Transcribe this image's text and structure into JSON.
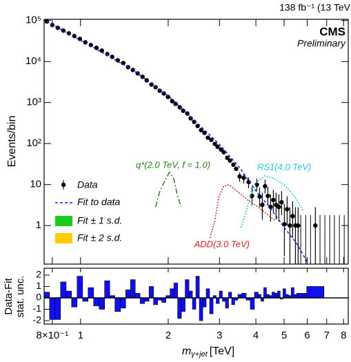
{
  "header": {
    "lumi": "138 fb⁻¹ (13 TeV",
    "experiment": "CMS",
    "status": "Preliminary"
  },
  "chart_data": [
    {
      "type": "line",
      "xlog": true,
      "ylog": true,
      "y_label": "Events/bin",
      "xlim": [
        0.75,
        8.3
      ],
      "ylim": [
        0.115,
        107000
      ],
      "xticks": [
        {
          "value": 0.8,
          "label": "8×10⁻¹"
        },
        1,
        2,
        3,
        4,
        5,
        6,
        7,
        8
      ],
      "yticks": [
        1,
        10,
        {
          "value": 100,
          "label": "10²"
        },
        {
          "value": 1000,
          "label": "10³"
        },
        {
          "value": 10000,
          "label": "10⁴"
        },
        {
          "value": 100000,
          "label": "10⁵"
        }
      ],
      "legend_extra": [
        {
          "name": "Fit ± 1 s.d.",
          "color": "#1ccc1c"
        },
        {
          "name": "Fit ± 2 s.d.",
          "color": "#ffcc00"
        }
      ],
      "series": [
        {
          "name": "Data",
          "style": "points",
          "color": "#000000",
          "x": [
            0.766,
            0.8,
            0.835,
            0.873,
            0.912,
            0.952,
            0.995,
            1.039,
            1.085,
            1.134,
            1.184,
            1.236,
            1.284,
            1.342,
            1.402,
            1.456,
            1.512,
            1.571,
            1.633,
            1.687,
            1.752,
            1.81,
            1.87,
            1.932,
            1.996,
            2.063,
            2.12,
            2.19,
            2.25,
            2.325,
            2.389,
            2.455,
            2.523,
            2.593,
            2.664,
            2.737,
            2.813,
            2.891,
            2.954,
            3.036,
            3.102,
            3.188,
            3.258,
            3.348,
            3.422,
            3.517,
            3.634,
            3.775,
            3.879,
            4.03,
            4.119,
            4.209,
            4.301,
            4.396,
            4.492,
            4.591,
            4.692,
            4.796,
            4.901,
            5.009,
            5.119,
            5.233,
            5.348,
            5.467,
            5.585,
            6.4
          ],
          "values": [
            94400,
            77600,
            66500,
            56900,
            48800,
            41800,
            35700,
            29400,
            25200,
            21600,
            18500,
            15200,
            13000,
            10700,
            9180,
            7280,
            6230,
            5130,
            4230,
            3480,
            2750,
            2360,
            1940,
            1660,
            1370,
            1080,
            929,
            765,
            630,
            540,
            411,
            339,
            268,
            212,
            182,
            139,
            123,
            97.7,
            83.6,
            71.6,
            61.4,
            45.0,
            38.5,
            30.5,
            24.2,
            15.7,
            14.6,
            11.5,
            5.3,
            9.9,
            5.1,
            3.2,
            9.1,
            5.3,
            2.85,
            4.2,
            3.2,
            2.85,
            3.7,
            1.08,
            2.5,
            1,
            1.7,
            1,
            1,
            1
          ],
          "error_low": [
            null,
            null,
            null,
            null,
            null,
            null,
            null,
            null,
            null,
            null,
            null,
            null,
            null,
            null,
            null,
            null,
            null,
            null,
            null,
            null,
            null,
            null,
            null,
            null,
            null,
            null,
            null,
            null,
            null,
            null,
            null,
            null,
            null,
            null,
            null,
            null,
            null,
            null,
            null,
            null,
            null,
            null,
            null,
            null,
            null,
            4,
            4,
            3.4,
            2.2,
            3,
            2.2,
            1.8,
            3,
            2.2,
            1.6,
            2,
            1.8,
            1.6,
            1.9,
            0.9,
            1.5,
            1,
            1.2,
            1,
            1,
            1
          ],
          "error_high": [
            null,
            null,
            null,
            null,
            null,
            null,
            null,
            null,
            null,
            null,
            null,
            null,
            null,
            null,
            null,
            null,
            null,
            null,
            null,
            null,
            null,
            null,
            null,
            null,
            null,
            null,
            null,
            null,
            null,
            null,
            null,
            null,
            null,
            null,
            null,
            null,
            null,
            null,
            null,
            null,
            null,
            null,
            null,
            null,
            null,
            4,
            4,
            3.4,
            3.4,
            4,
            3.4,
            3.1,
            4,
            3.4,
            2.9,
            3.2,
            3.1,
            2.9,
            3.2,
            2.3,
            2.7,
            1.8,
            2.2,
            1.8,
            1.8,
            1.8
          ]
        },
        {
          "name": "Fit to data",
          "style": "dashed",
          "color": "#1a1aee",
          "x": [
            0.766,
            0.8,
            1,
            1.5,
            2,
            2.5,
            3,
            3.5,
            4,
            4.5,
            5,
            5.5,
            6
          ],
          "values": [
            94400,
            80000,
            33000,
            6500,
            1450,
            330,
            95,
            27,
            7,
            2.6,
            0.9,
            0.38,
            0.13
          ]
        },
        {
          "name": "q*(2.0 TeV, f = 1.0)",
          "style": "dashdot",
          "color": "#2a7f1e",
          "x": [
            1.81,
            1.87,
            1.932,
            2.018,
            2.085,
            2.143,
            2.214
          ],
          "values": [
            2.85,
            6.7,
            11.1,
            19.9,
            14.6,
            6.2,
            2.85
          ]
        },
        {
          "name": "ADD(3.0 TeV)",
          "style": "dotted",
          "color": "#d42020",
          "x": [
            2.782,
            2.891,
            2.986,
            3.102,
            3.242,
            3.46,
            3.752,
            4.07,
            4.42,
            4.67
          ],
          "values": [
            0.5,
            1.31,
            5.1,
            9.15,
            9.9,
            6.7,
            4.2,
            2.85,
            1.79,
            1.31
          ]
        },
        {
          "name": "RS1(4.0 TeV)",
          "style": "dotted",
          "color": "#22c4d8",
          "x": [
            3.55,
            3.674,
            3.795,
            4.008,
            4.301,
            4.67,
            5.06,
            5.43,
            5.8
          ],
          "values": [
            0.89,
            1.79,
            4.2,
            11.1,
            16.4,
            13.5,
            9.15,
            5.1,
            2.35
          ]
        }
      ],
      "empty_bins": {
        "x": [
          5.7,
          5.93,
          6.16,
          6.64,
          6.9,
          7.17,
          7.44,
          7.74,
          8.04
        ],
        "error_high": [
          1.8,
          1.8,
          1.8,
          1.8,
          1.8,
          1.8,
          1.8,
          1.8,
          1.8
        ]
      }
    },
    {
      "type": "bar",
      "y_label": [
        "Data-Fit",
        "stat. unc."
      ],
      "x_label": {
        "symbol": "m",
        "subscript": "γ+jet",
        "unit": "[TeV]"
      },
      "ylim": [
        -2.3,
        2.6
      ],
      "yticks": [
        -2,
        -1,
        0,
        1,
        2
      ],
      "color": "#1010ee",
      "values": [
        0.5,
        -1.9,
        -1.9,
        1.4,
        0.6,
        -0.8,
        1.9,
        -0.3,
        0.9,
        -0.7,
        -1.0,
        1.5,
        0.2,
        -1.2,
        -0.9,
        0.7,
        1.6,
        0.4,
        -0.5,
        -0.3,
        1.0,
        -0.6,
        -0.2,
        -0.4,
        0.2,
        0.8,
        1.3,
        -1.8,
        -1.2,
        1.6,
        0.6,
        -1.0,
        1.9,
        -2.0,
        -0.8,
        0.8,
        -1.4,
        0.2,
        -0.5,
        0.6,
        -0.3,
        -0.9,
        0.5,
        -0.6,
        -0.2,
        0.3,
        0.4,
        -0.2,
        -1.0,
        0.5,
        0.3,
        -0.3,
        0.9,
        0.3,
        0.2,
        0.5,
        0.4,
        0.6,
        -0.1,
        0.8,
        0.3,
        0.2,
        0.9,
        0.3,
        0.4,
        1.0
      ]
    }
  ]
}
